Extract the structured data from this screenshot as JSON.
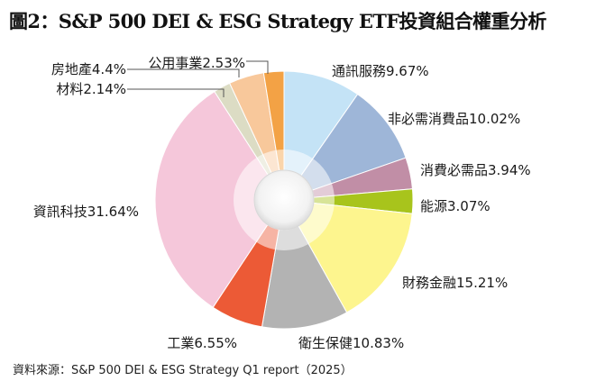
{
  "title": "圖2：S&P 500 DEI & ESG Strategy ETF投資組合權重分析",
  "source": "資料來源：S&P 500 DEI & ESG Strategy Q1 report（2025）",
  "chart_data": {
    "type": "pie",
    "donut": true,
    "title": "圖2：S&P 500 DEI & ESG Strategy ETF投資組合權重分析",
    "slices": [
      {
        "label": "通訊服務",
        "value": 9.67,
        "value_label": "9.67%",
        "color": "#c4e3f6"
      },
      {
        "label": "非必需消費品",
        "value": 10.02,
        "value_label": "10.02%",
        "color": "#9eb6d8"
      },
      {
        "label": "消費必需品",
        "value": 3.94,
        "value_label": "3.94%",
        "color": "#c18ea6"
      },
      {
        "label": "能源",
        "value": 3.07,
        "value_label": "3.07%",
        "color": "#a8c41c"
      },
      {
        "label": "財務金融",
        "value": 15.21,
        "value_label": "15.21%",
        "color": "#fdf58e"
      },
      {
        "label": "衛生保健",
        "value": 10.83,
        "value_label": "10.83%",
        "color": "#b3b3b3"
      },
      {
        "label": "工業",
        "value": 6.55,
        "value_label": "6.55%",
        "color": "#ec5a36"
      },
      {
        "label": "資訊科技",
        "value": 31.64,
        "value_label": "31.64%",
        "color": "#f5c7da"
      },
      {
        "label": "材料",
        "value": 2.14,
        "value_label": "2.14%",
        "color": "#dcdcc4"
      },
      {
        "label": "房地產",
        "value": 4.4,
        "value_label": "4.4%",
        "color": "#f8c89b"
      },
      {
        "label": "公用事業",
        "value": 2.53,
        "value_label": "2.53%",
        "color": "#f3a245"
      }
    ]
  }
}
